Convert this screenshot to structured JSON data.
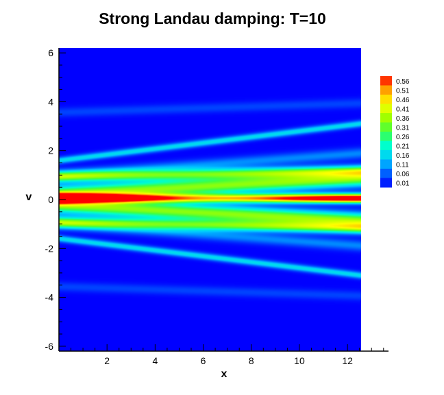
{
  "chart_data": {
    "type": "heatmap",
    "title": "Strong Landau damping: T=10",
    "xlabel": "x",
    "ylabel": "v",
    "xlim": [
      0,
      13.566
    ],
    "ylim": [
      -6.2,
      6.2
    ],
    "data_xlim": [
      0,
      12.566
    ],
    "x_ticks": [
      2,
      4,
      6,
      8,
      10,
      12
    ],
    "y_ticks": [
      -6,
      -4,
      -2,
      0,
      2,
      4,
      6
    ],
    "colorbar": {
      "levels": [
        "0.56",
        "0.51",
        "0.46",
        "0.41",
        "0.36",
        "0.31",
        "0.26",
        "0.21",
        "0.16",
        "0.11",
        "0.06",
        "0.01"
      ],
      "min": 0.01,
      "max": 0.58,
      "colors": [
        "#0000ff",
        "#0060ff",
        "#00c8ff",
        "#00ffcc",
        "#40ff40",
        "#a0ff00",
        "#ffff00",
        "#ffa000",
        "#ff0000"
      ]
    },
    "background_color": "#0000ff",
    "field": {
      "description_of_bands": "filaments in v vs x",
      "bands": [
        {
          "v0": 0.05,
          "slope": 0.0,
          "width": 0.18,
          "amp": 0.57,
          "mod_amp": 0.12
        },
        {
          "v0": 0.55,
          "slope": 0.05,
          "width": 0.32,
          "amp": 0.34
        },
        {
          "v0": -0.55,
          "slope": -0.05,
          "width": 0.32,
          "amp": 0.34
        },
        {
          "v0": 1.05,
          "slope": 0.02,
          "width": 0.22,
          "amp": 0.3
        },
        {
          "v0": -1.05,
          "slope": -0.02,
          "width": 0.22,
          "amp": 0.3
        },
        {
          "v0": 2.35,
          "slope": 0.12,
          "width": 0.14,
          "amp": 0.17
        },
        {
          "v0": -2.35,
          "slope": -0.12,
          "width": 0.14,
          "amp": 0.17
        },
        {
          "v0": 1.45,
          "slope": 0.07,
          "width": 0.22,
          "amp": 0.1
        },
        {
          "v0": -1.45,
          "slope": -0.07,
          "width": 0.22,
          "amp": 0.1
        },
        {
          "v0": 3.75,
          "slope": 0.03,
          "width": 0.2,
          "amp": 0.05
        },
        {
          "v0": -3.75,
          "slope": -0.03,
          "width": 0.2,
          "amp": 0.05
        }
      ]
    }
  }
}
